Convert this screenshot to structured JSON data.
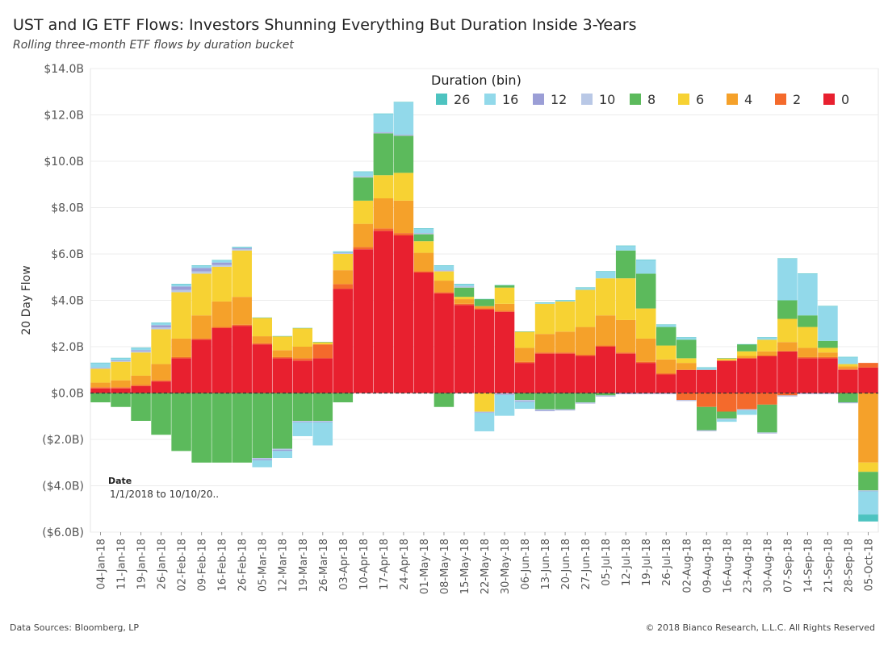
{
  "header": {
    "title": "UST and IG ETF Flows: Investors Shunning Everything But Duration Inside 3-Years",
    "subtitle": "Rolling three-month ETF flows by duration bucket"
  },
  "footer": {
    "source": "Data Sources: Bloomberg, LP",
    "copyright": "© 2018 Bianco Research, L.L.C. All Rights Reserved"
  },
  "filter_card": {
    "label": "Date",
    "value": "1/1/2018 to 10/10/20.."
  },
  "chart_data": {
    "type": "area",
    "stacked": true,
    "ylabel": "20 Day Flow",
    "xlabel": "",
    "y_unit": "$ billions",
    "ylim": [
      -6,
      14
    ],
    "y_ticks": [
      14,
      12,
      10,
      8,
      6,
      4,
      2,
      0,
      -2,
      -4,
      -6
    ],
    "y_tick_labels": [
      "$14.0B",
      "$12.0B",
      "$10.0B",
      "$8.0B",
      "$6.0B",
      "$4.0B",
      "$2.0B",
      "$0.0B",
      "($2.0B)",
      "($4.0B)",
      "($6.0B)"
    ],
    "x_tick_labels": [
      "04-Jan-18",
      "11-Jan-18",
      "19-Jan-18",
      "26-Jan-18",
      "02-Feb-18",
      "09-Feb-18",
      "16-Feb-18",
      "26-Feb-18",
      "05-Mar-18",
      "12-Mar-18",
      "19-Mar-18",
      "26-Mar-18",
      "03-Apr-18",
      "10-Apr-18",
      "17-Apr-18",
      "24-Apr-18",
      "01-May-18",
      "08-May-18",
      "15-May-18",
      "22-May-18",
      "30-May-18",
      "06-Jun-18",
      "13-Jun-18",
      "20-Jun-18",
      "27-Jun-18",
      "05-Jul-18",
      "12-Jul-18",
      "19-Jul-18",
      "26-Jul-18",
      "02-Aug-18",
      "09-Aug-18",
      "16-Aug-18",
      "23-Aug-18",
      "30-Aug-18",
      "07-Sep-18",
      "14-Sep-18",
      "21-Sep-18",
      "28-Sep-18",
      "05-Oct-18"
    ],
    "legend": {
      "title": "Duration (bin)",
      "placement": "top-right",
      "items": [
        {
          "label": "26",
          "color": "#4dc3c0"
        },
        {
          "label": "16",
          "color": "#92d9ea"
        },
        {
          "label": "12",
          "color": "#9b9ed6"
        },
        {
          "label": "10",
          "color": "#b9c8e6"
        },
        {
          "label": "8",
          "color": "#5cba5c"
        },
        {
          "label": "6",
          "color": "#f7d233"
        },
        {
          "label": "4",
          "color": "#f5a12a"
        },
        {
          "label": "2",
          "color": "#f46a2c"
        },
        {
          "label": "0",
          "color": "#e8202f"
        }
      ]
    },
    "categories": [
      "04-Jan-18",
      "11-Jan-18",
      "19-Jan-18",
      "26-Jan-18",
      "02-Feb-18",
      "09-Feb-18",
      "16-Feb-18",
      "26-Feb-18",
      "05-Mar-18",
      "12-Mar-18",
      "19-Mar-18",
      "26-Mar-18",
      "03-Apr-18",
      "10-Apr-18",
      "17-Apr-18",
      "24-Apr-18",
      "01-May-18",
      "08-May-18",
      "15-May-18",
      "22-May-18",
      "30-May-18",
      "06-Jun-18",
      "13-Jun-18",
      "20-Jun-18",
      "27-Jun-18",
      "05-Jul-18",
      "12-Jul-18",
      "19-Jul-18",
      "26-Jul-18",
      "02-Aug-18",
      "09-Aug-18",
      "16-Aug-18",
      "23-Aug-18",
      "30-Aug-18",
      "07-Sep-18",
      "14-Sep-18",
      "21-Sep-18",
      "28-Sep-18",
      "05-Oct-18"
    ],
    "series": [
      {
        "name": "0",
        "color": "#e8202f",
        "values": [
          0.2,
          0.2,
          0.3,
          0.5,
          1.5,
          2.3,
          2.8,
          2.9,
          2.1,
          1.5,
          1.4,
          1.5,
          4.5,
          6.2,
          7.0,
          6.8,
          5.2,
          4.3,
          3.8,
          3.6,
          3.5,
          1.3,
          1.7,
          1.7,
          1.6,
          2.0,
          1.7,
          1.3,
          0.8,
          1.0,
          1.0,
          1.4,
          1.5,
          1.6,
          1.8,
          1.5,
          1.5,
          1.0,
          1.1
        ]
      },
      {
        "name": "2",
        "color": "#f46a2c",
        "values": [
          0.05,
          0.05,
          0.05,
          0.05,
          0.05,
          0.05,
          0.05,
          0.05,
          0.05,
          0.05,
          0.1,
          0.6,
          0.2,
          0.1,
          0.1,
          0.1,
          0.05,
          0.05,
          0.05,
          0.05,
          0.05,
          0.05,
          0.05,
          0.05,
          0.05,
          0.05,
          0.05,
          0.05,
          0.05,
          -0.3,
          -0.6,
          -0.8,
          -0.7,
          -0.5,
          -0.1,
          0.05,
          0.05,
          0.05,
          0.2
        ]
      },
      {
        "name": "4",
        "color": "#f5a12a",
        "values": [
          0.2,
          0.3,
          0.4,
          0.7,
          0.8,
          1.0,
          1.1,
          1.2,
          0.3,
          0.3,
          0.5,
          0.0,
          0.6,
          1.0,
          1.3,
          1.4,
          0.8,
          0.5,
          0.2,
          0.1,
          0.3,
          0.6,
          0.8,
          0.9,
          1.2,
          1.3,
          1.4,
          1.0,
          0.6,
          0.3,
          0.0,
          0.0,
          0.1,
          0.2,
          0.4,
          0.4,
          0.2,
          0.1,
          -3.0
        ]
      },
      {
        "name": "6",
        "color": "#f7d233",
        "values": [
          0.6,
          0.8,
          1.0,
          1.5,
          2.0,
          1.8,
          1.5,
          2.0,
          0.8,
          0.6,
          0.8,
          0.1,
          0.7,
          1.0,
          1.0,
          1.2,
          0.5,
          0.4,
          0.1,
          -0.8,
          0.7,
          0.7,
          1.3,
          1.3,
          1.6,
          1.6,
          1.8,
          1.3,
          0.6,
          0.2,
          0.0,
          0.1,
          0.2,
          0.5,
          1.0,
          0.9,
          0.2,
          0.1,
          -0.4
        ]
      },
      {
        "name": "8",
        "color": "#5cba5c",
        "values": [
          -0.4,
          -0.6,
          -1.2,
          -1.8,
          -2.5,
          -3.0,
          -3.0,
          -3.0,
          -2.8,
          -2.4,
          -1.2,
          -1.2,
          -0.4,
          1.0,
          1.8,
          1.6,
          0.3,
          -0.6,
          0.4,
          0.3,
          0.1,
          -0.3,
          -0.7,
          -0.7,
          -0.4,
          -0.1,
          1.2,
          1.5,
          0.8,
          0.8,
          -1.0,
          -0.3,
          0.3,
          -1.2,
          0.8,
          0.5,
          0.3,
          -0.4,
          -0.8
        ]
      },
      {
        "name": "10",
        "color": "#b9c8e6",
        "values": [
          0.03,
          0.03,
          0.05,
          0.08,
          0.1,
          0.1,
          0.08,
          0.05,
          -0.05,
          -0.05,
          -0.03,
          -0.03,
          0.03,
          0.03,
          0.03,
          0.03,
          0.03,
          0.03,
          0.03,
          -0.03,
          -0.05,
          -0.05,
          -0.05,
          -0.03,
          -0.03,
          -0.03,
          -0.03,
          -0.02,
          -0.02,
          -0.02,
          -0.02,
          -0.02,
          -0.02,
          -0.02,
          -0.02,
          -0.02,
          -0.02,
          -0.02,
          -0.02
        ]
      },
      {
        "name": "12",
        "color": "#9b9ed6",
        "values": [
          0.02,
          0.03,
          0.05,
          0.1,
          0.15,
          0.15,
          0.1,
          0.05,
          -0.05,
          -0.05,
          -0.03,
          -0.03,
          0.02,
          0.02,
          0.02,
          0.02,
          0.02,
          0.02,
          0.02,
          -0.02,
          -0.03,
          -0.03,
          -0.03,
          -0.02,
          -0.02,
          -0.02,
          -0.02,
          -0.02,
          -0.02,
          -0.02,
          -0.02,
          -0.02,
          -0.02,
          -0.02,
          -0.02,
          -0.02,
          -0.02,
          -0.02,
          -0.02
        ]
      },
      {
        "name": "16",
        "color": "#92d9ea",
        "values": [
          0.2,
          0.1,
          0.1,
          0.1,
          0.1,
          0.1,
          0.1,
          0.05,
          -0.3,
          -0.3,
          -0.6,
          -1.0,
          0.05,
          0.2,
          0.8,
          1.4,
          0.2,
          0.2,
          0.1,
          -0.8,
          -0.9,
          -0.3,
          0.05,
          0.05,
          0.1,
          0.3,
          0.2,
          0.6,
          0.1,
          0.1,
          0.1,
          -0.1,
          -0.2,
          0.1,
          1.8,
          1.8,
          1.5,
          0.3,
          -1.0
        ]
      },
      {
        "name": "26",
        "color": "#4dc3c0",
        "values": [
          0.01,
          0.01,
          0.01,
          0.01,
          0.01,
          0.01,
          0.01,
          0.01,
          0.01,
          0.01,
          0.01,
          0.01,
          0.01,
          0.01,
          0.01,
          0.01,
          0.01,
          0.01,
          0.01,
          0.01,
          0.01,
          0.01,
          0.01,
          0.01,
          0.01,
          0.01,
          0.01,
          0.01,
          0.01,
          0.01,
          0.01,
          0.01,
          0.01,
          0.01,
          0.01,
          0.01,
          0.01,
          0.01,
          -0.3
        ]
      }
    ]
  }
}
